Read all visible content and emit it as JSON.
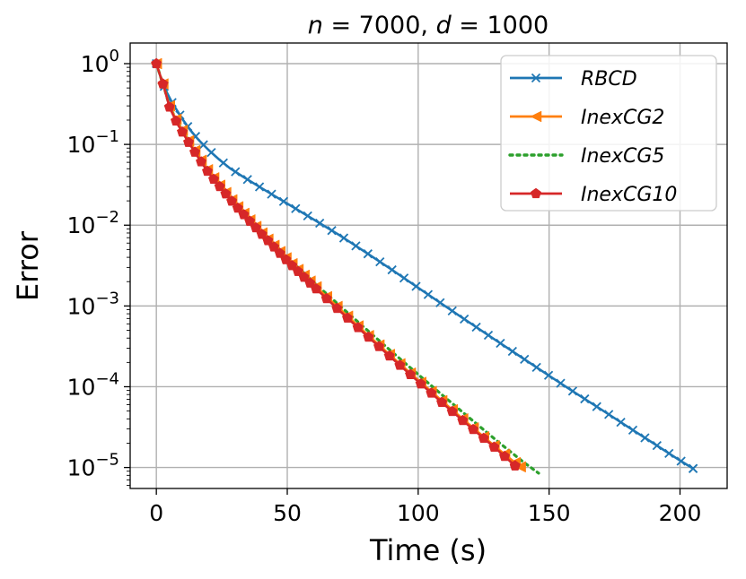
{
  "chart_data": {
    "type": "line",
    "title": "n = 7000, d = 1000",
    "title_parts": {
      "n_sym": "n",
      "n_val": " = 7000, ",
      "d_sym": "d",
      "d_val": " = 1000"
    },
    "xlabel": "Time (s)",
    "ylabel": "Error",
    "xscale": "linear",
    "yscale": "log",
    "xlim": [
      -10,
      218
    ],
    "ylim": [
      5.5e-06,
      1.8
    ],
    "xticks": [
      0,
      50,
      100,
      150,
      200
    ],
    "xtick_labels": [
      "0",
      "50",
      "100",
      "150",
      "200"
    ],
    "yticks": [
      1,
      0.1,
      0.01,
      0.001,
      0.0001,
      1e-05
    ],
    "ytick_labels": [
      {
        "base": "10",
        "exp": "0"
      },
      {
        "base": "10",
        "exp": "−1"
      },
      {
        "base": "10",
        "exp": "−2"
      },
      {
        "base": "10",
        "exp": "−3"
      },
      {
        "base": "10",
        "exp": "−4"
      },
      {
        "base": "10",
        "exp": "−5"
      }
    ],
    "grid": true,
    "legend_position": "top-right",
    "series": [
      {
        "name": "RBCD",
        "color": "#1f77b4",
        "marker": "x",
        "linestyle": "solid",
        "points": [
          [
            0,
            1.0
          ],
          [
            2,
            0.62
          ],
          [
            4,
            0.44
          ],
          [
            6,
            0.33
          ],
          [
            8,
            0.26
          ],
          [
            10,
            0.205
          ],
          [
            13,
            0.15
          ],
          [
            16,
            0.115
          ],
          [
            20,
            0.085
          ],
          [
            24,
            0.065
          ],
          [
            28,
            0.051
          ],
          [
            33,
            0.04
          ],
          [
            40,
            0.029
          ],
          [
            50,
            0.0185
          ],
          [
            60,
            0.0118
          ],
          [
            70,
            0.0075
          ],
          [
            80,
            0.0046
          ],
          [
            90,
            0.0028
          ],
          [
            100,
            0.00168
          ],
          [
            110,
            0.00101
          ],
          [
            120,
            0.00061
          ],
          [
            130,
            0.00037
          ],
          [
            140,
            0.000225
          ],
          [
            150,
            0.000137
          ],
          [
            160,
            8.4e-05
          ],
          [
            170,
            5.2e-05
          ],
          [
            180,
            3.2e-05
          ],
          [
            190,
            1.98e-05
          ],
          [
            200,
            1.22e-05
          ],
          [
            205,
            9.7e-06
          ]
        ]
      },
      {
        "name": "InexCG2",
        "color": "#ff7f0e",
        "marker": "<",
        "linestyle": "solid",
        "points": [
          [
            0,
            1.0
          ],
          [
            3,
            0.5
          ],
          [
            5,
            0.3
          ],
          [
            8,
            0.19
          ],
          [
            12,
            0.115
          ],
          [
            16,
            0.072
          ],
          [
            20,
            0.046
          ],
          [
            25,
            0.029
          ],
          [
            30,
            0.0185
          ],
          [
            40,
            0.0082
          ],
          [
            50,
            0.0038
          ],
          [
            60,
            0.00185
          ],
          [
            70,
            0.00092
          ],
          [
            80,
            0.00046
          ],
          [
            90,
            0.000235
          ],
          [
            100,
            0.000121
          ],
          [
            110,
            6.3e-05
          ],
          [
            120,
            3.3e-05
          ],
          [
            130,
            1.75e-05
          ],
          [
            139,
            1.02e-05
          ]
        ]
      },
      {
        "name": "InexCG5",
        "color": "#2ca02c",
        "marker": "",
        "linestyle": "dotted",
        "points": [
          [
            0,
            1.0
          ],
          [
            3,
            0.5
          ],
          [
            5,
            0.3
          ],
          [
            8,
            0.19
          ],
          [
            12,
            0.115
          ],
          [
            16,
            0.072
          ],
          [
            20,
            0.046
          ],
          [
            25,
            0.029
          ],
          [
            30,
            0.0185
          ],
          [
            40,
            0.0085
          ],
          [
            50,
            0.004
          ],
          [
            60,
            0.00198
          ],
          [
            70,
            0.00101
          ],
          [
            80,
            0.00052
          ],
          [
            90,
            0.00027
          ],
          [
            100,
            0.000142
          ],
          [
            110,
            7.5e-05
          ],
          [
            120,
            4e-05
          ],
          [
            130,
            2.15e-05
          ],
          [
            140,
            1.18e-05
          ],
          [
            146,
            8.5e-06
          ]
        ]
      },
      {
        "name": "InexCG10",
        "color": "#d62728",
        "marker": "p",
        "linestyle": "solid",
        "points": [
          [
            0,
            1.0
          ],
          [
            3,
            0.5
          ],
          [
            5,
            0.29
          ],
          [
            8,
            0.18
          ],
          [
            12,
            0.11
          ],
          [
            16,
            0.069
          ],
          [
            20,
            0.044
          ],
          [
            25,
            0.028
          ],
          [
            30,
            0.0178
          ],
          [
            40,
            0.0079
          ],
          [
            50,
            0.0036
          ],
          [
            60,
            0.00175
          ],
          [
            70,
            0.00087
          ],
          [
            80,
            0.00044
          ],
          [
            90,
            0.000225
          ],
          [
            100,
            0.000116
          ],
          [
            110,
            6e-05
          ],
          [
            120,
            3.15e-05
          ],
          [
            130,
            1.68e-05
          ],
          [
            137,
            1.05e-05
          ]
        ]
      }
    ]
  }
}
